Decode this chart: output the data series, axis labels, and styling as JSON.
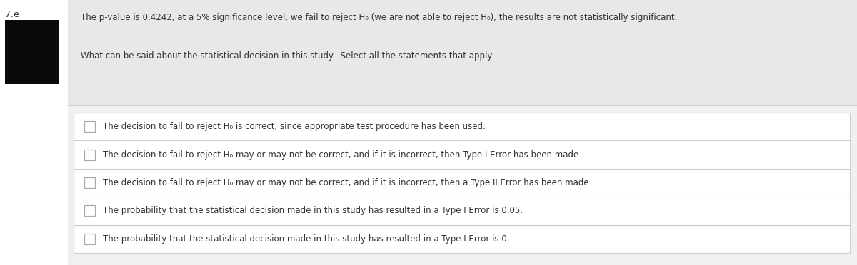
{
  "question_number": "7.e",
  "bg_color_page": "#f0f0f0",
  "bg_color_gray": "#e8e8e8",
  "bg_color_white": "#ffffff",
  "border_color": "#cccccc",
  "border_color_outer": "#d0d0d0",
  "text_color": "#333333",
  "black_rect": "#0a0a0a",
  "header_line1": "The p-value is 0.4242, at a 5% significance level, we fail to reject H₀ (we are not able to reject H₀), the results are not statistically significant.",
  "header_line2": "What can be said about the statistical decision in this study.  Select all the statements that apply.",
  "options": [
    "The decision to fail to reject H₀ is correct, since appropriate test procedure has been used.",
    "The decision to fail to reject H₀ may or may not be correct, and if it is incorrect, then Type I Error has been made.",
    "The decision to fail to reject H₀ may or may not be correct, and if it is incorrect, then a Type II Error has been made.",
    "The probability that the statistical decision made in this study has resulted in a Type I Error is 0.05.",
    "The probability that the statistical decision made in this study has resulted in a Type I Error is 0."
  ],
  "fig_width": 12.0,
  "fig_height": 3.72,
  "dpi": 100
}
